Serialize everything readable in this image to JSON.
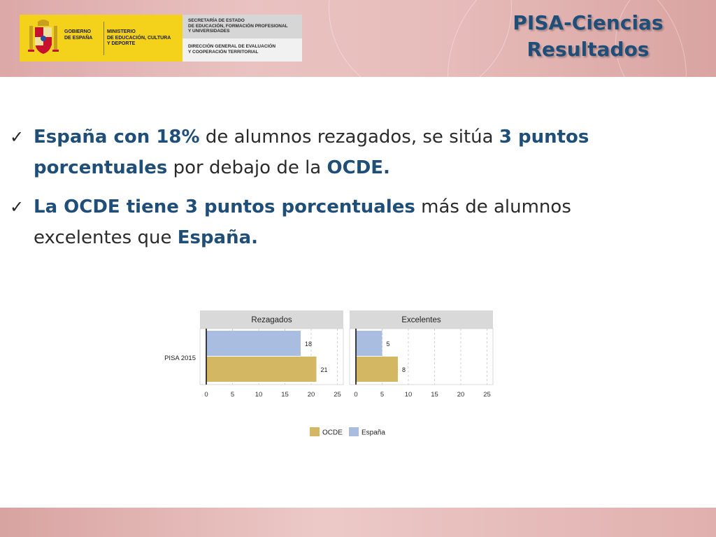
{
  "header": {
    "logo": {
      "gov_line1": "GOBIERNO",
      "gov_line2": "DE ESPAÑA",
      "ministry_line1": "MINISTERIO",
      "ministry_line2": "DE EDUCACIÓN, CULTURA",
      "ministry_line3": "Y DEPORTE",
      "secretaria_line1": "SECRETARÍA DE ESTADO",
      "secretaria_line2": "DE EDUCACIÓN, FORMACIÓN PROFESIONAL",
      "secretaria_line3": "Y UNIVERSIDADES",
      "direccion_line1": "DIRECCIÓN GENERAL DE EVALUACIÓN",
      "direccion_line2": "Y COOPERACIÓN TERRITORIAL"
    },
    "title_line1": "PISA-Ciencias",
    "title_line2": "Resultados"
  },
  "bullets": [
    {
      "parts": [
        {
          "text": "España con ",
          "hl": true
        },
        {
          "text": "18%",
          "hl": true
        },
        {
          "text": " de alumnos rezagados, se sitúa ",
          "hl": false
        },
        {
          "text": "3 puntos porcentuales",
          "hl": true
        },
        {
          "text": " por debajo de la ",
          "hl": false
        },
        {
          "text": "OCDE.",
          "hl": true
        }
      ]
    },
    {
      "parts": [
        {
          "text": "La OCDE tiene 3 puntos porcentuales",
          "hl": true
        },
        {
          "text": " más de alumnos excelentes que ",
          "hl": false
        },
        {
          "text": "España.",
          "hl": true
        }
      ]
    }
  ],
  "colors": {
    "title": "#1f4e79",
    "highlight": "#1f4e79",
    "ocde": "#d4b763",
    "espana": "#a9bde0",
    "panel_header": "#d9d9d9"
  },
  "chart_data": {
    "type": "bar",
    "orientation": "horizontal",
    "category_label": "PISA 2015",
    "xlim": [
      0,
      25
    ],
    "xticks": [
      0,
      5,
      10,
      15,
      20,
      25
    ],
    "grid": true,
    "legend_placement": "bottom",
    "panels": [
      {
        "title": "Rezagados",
        "series": [
          {
            "name": "España",
            "value": 18
          },
          {
            "name": "OCDE",
            "value": 21
          }
        ]
      },
      {
        "title": "Excelentes",
        "series": [
          {
            "name": "España",
            "value": 5
          },
          {
            "name": "OCDE",
            "value": 8
          }
        ]
      }
    ],
    "legend": [
      "OCDE",
      "España"
    ]
  }
}
